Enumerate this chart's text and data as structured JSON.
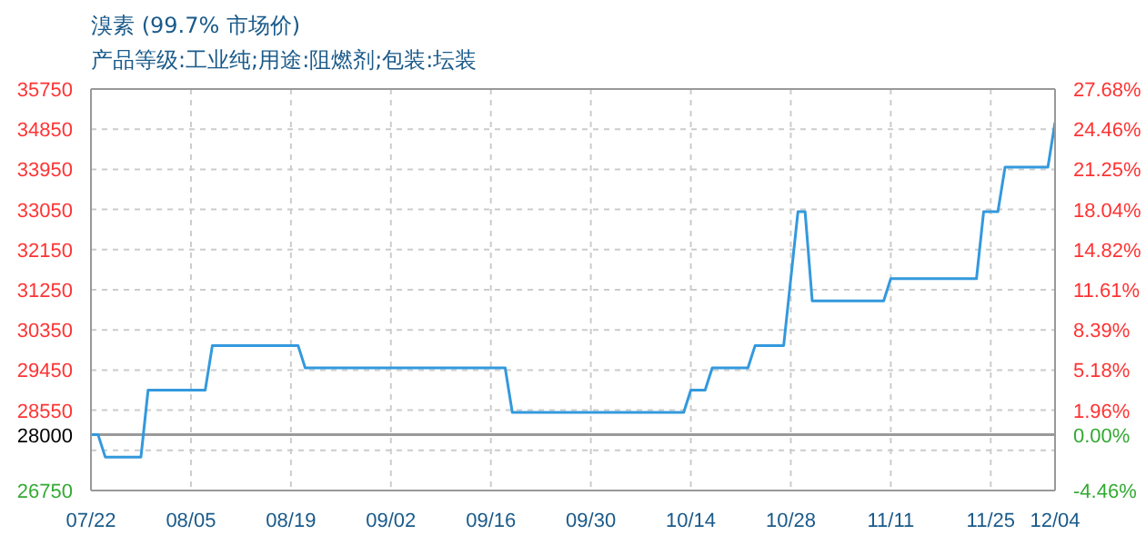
{
  "chart_data": {
    "type": "line",
    "title": "溴素 (99.7% 市场价)",
    "subtitle": "产品等级:工业纯;用途:阻燃剂;包装:坛装",
    "x": [
      "--07-22",
      "--07-23",
      "--07-24",
      "--07-29",
      "--07-30",
      "--08-07",
      "--08-08",
      "--08-20",
      "--08-21",
      "--09-18",
      "--09-19",
      "--10-13",
      "--10-14",
      "--10-16",
      "--10-17",
      "--10-22",
      "--10-23",
      "--10-27",
      "--10-29",
      "--10-30",
      "--10-31",
      "--11-10",
      "--11-11",
      "--11-23",
      "--11-24",
      "--11-26",
      "--11-27",
      "--12-03",
      "--12-04"
    ],
    "series": [
      {
        "color": "#3399dd",
        "values": [
          28000,
          28000,
          27500,
          27500,
          29000,
          29000,
          30000,
          30000,
          29500,
          29500,
          28500,
          28500,
          29000,
          29000,
          29500,
          29500,
          30000,
          30000,
          33000,
          33000,
          31000,
          31000,
          31500,
          31500,
          33000,
          33000,
          34000,
          34000,
          35000
        ]
      }
    ],
    "xlim": [
      "--07-22",
      "--12-04"
    ],
    "xticks": [
      {
        "value": "--07-22",
        "label": "07/22"
      },
      {
        "value": "--08-05",
        "label": "08/05"
      },
      {
        "value": "--08-19",
        "label": "08/19"
      },
      {
        "value": "--09-02",
        "label": "09/02"
      },
      {
        "value": "--09-16",
        "label": "09/16"
      },
      {
        "value": "--09-30",
        "label": "09/30"
      },
      {
        "value": "--10-14",
        "label": "10/14"
      },
      {
        "value": "--10-28",
        "label": "10/28"
      },
      {
        "value": "--11-11",
        "label": "11/11"
      },
      {
        "value": "--11-25",
        "label": "11/25"
      },
      {
        "value": "--12-04",
        "label": "12/04"
      }
    ],
    "ylim": [
      26750,
      35750
    ],
    "yticks": [
      26750,
      {
        "value": 27650,
        "label": null
      },
      28000,
      28550,
      29450,
      30350,
      31250,
      32150,
      33050,
      33950,
      34850,
      35750
    ],
    "y2lim": [
      -4.46,
      27.68
    ],
    "y2ticks": [
      {
        "value": -4.46,
        "label": "-4.46%"
      },
      {
        "value": 0,
        "label": "0.00%"
      },
      {
        "value": 1.96,
        "label": "1.96%"
      },
      {
        "value": 5.18,
        "label": "5.18%"
      },
      {
        "value": 8.39,
        "label": "8.39%"
      },
      {
        "value": 11.61,
        "label": "11.61%"
      },
      {
        "value": 14.82,
        "label": "14.82%"
      },
      {
        "value": 18.04,
        "label": "18.04%"
      },
      {
        "value": 21.25,
        "label": "21.25%"
      },
      {
        "value": 24.46,
        "label": "24.46%"
      },
      {
        "value": 27.68,
        "label": "27.68%"
      }
    ],
    "ref_lines": [
      {
        "axis": "y",
        "value": 28000,
        "label": null,
        "color": "#999999",
        "line_style": "solid"
      }
    ],
    "grid": true,
    "marker": "none",
    "line_style": "solid"
  }
}
